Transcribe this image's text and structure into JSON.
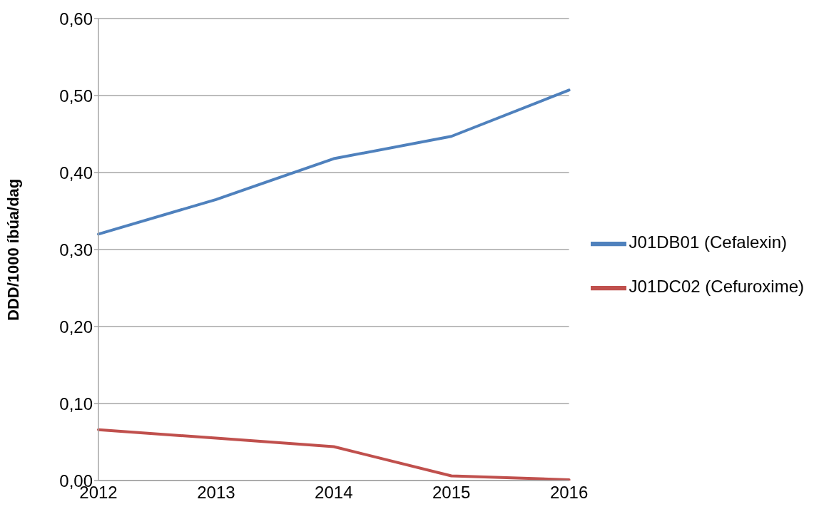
{
  "chart_data": {
    "type": "line",
    "ylabel": "DDD/1000 íbúa/dag",
    "categories": [
      "2012",
      "2013",
      "2014",
      "2015",
      "2016"
    ],
    "series": [
      {
        "name": "J01DB01 (Cefalexin)",
        "color": "#4f81bd",
        "values": [
          0.32,
          0.365,
          0.418,
          0.447,
          0.507
        ]
      },
      {
        "name": "J01DC02 (Cefuroxime)",
        "color": "#c0504d",
        "values": [
          0.066,
          0.055,
          0.044,
          0.006,
          0.001
        ]
      }
    ],
    "ylim": [
      0,
      0.6
    ],
    "yticks": [
      {
        "value": 0,
        "label": "0,00"
      },
      {
        "value": 0.1,
        "label": "0,10"
      },
      {
        "value": 0.2,
        "label": "0,20"
      },
      {
        "value": 0.3,
        "label": "0,30"
      },
      {
        "value": 0.4,
        "label": "0,40"
      },
      {
        "value": 0.5,
        "label": "0,50"
      },
      {
        "value": 0.6,
        "label": "0,60"
      }
    ],
    "grid": "y",
    "legend": "right"
  }
}
